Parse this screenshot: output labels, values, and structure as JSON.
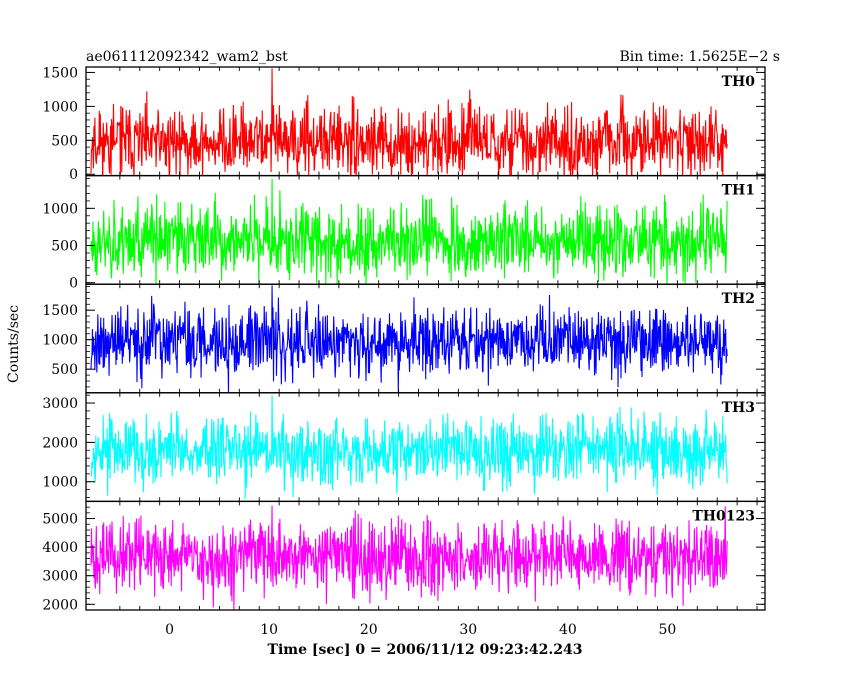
{
  "header": {
    "title": "ae061112092342_wam2_bst",
    "bin_time": "Bin time: 1.5625E−2 s"
  },
  "chart_data": {
    "type": "line",
    "title": "ae061112092342_wam2_bst",
    "subtitle": "Bin time: 1.5625E−2 s",
    "xlabel": "Time [sec] 0 = 2006/11/12 09:23:42.243",
    "ylabel": "Counts/sec",
    "xlim": [
      -8.4,
      59.8
    ],
    "x_range_data": [
      -7.9,
      56.0
    ],
    "x_ticks": [
      0,
      10,
      20,
      30,
      40,
      50
    ],
    "grid": false,
    "legend": "none",
    "panels": [
      {
        "name": "TH0",
        "color": "#ff0000",
        "ylim": [
          -20,
          1580
        ],
        "y_ticks": [
          0,
          500,
          1000,
          1500
        ],
        "baseline": 470,
        "amplitude": 480,
        "seed": 11,
        "spike_peak": 1560
      },
      {
        "name": "TH1",
        "color": "#00ff00",
        "ylim": [
          -20,
          1440
        ],
        "y_ticks": [
          0,
          500,
          1000
        ],
        "baseline": 560,
        "amplitude": 470,
        "seed": 23,
        "spike_peak": 1400
      },
      {
        "name": "TH2",
        "color": "#0000ff",
        "ylim": [
          100,
          1940
        ],
        "y_ticks": [
          500,
          1000,
          1500
        ],
        "baseline": 960,
        "amplitude": 550,
        "seed": 37,
        "spike_peak": 1920
      },
      {
        "name": "TH3",
        "color": "#00ffff",
        "ylim": [
          500,
          3260
        ],
        "y_ticks": [
          1000,
          2000,
          3000
        ],
        "baseline": 1800,
        "amplitude": 800,
        "seed": 53,
        "spike_peak": 3200
      },
      {
        "name": "TH0123",
        "color": "#ff00ff",
        "ylim": [
          1800,
          5600
        ],
        "y_ticks": [
          2000,
          3000,
          4000,
          5000
        ],
        "baseline": 3650,
        "amplitude": 1150,
        "seed": 71,
        "spike_peak": 5450
      }
    ]
  }
}
